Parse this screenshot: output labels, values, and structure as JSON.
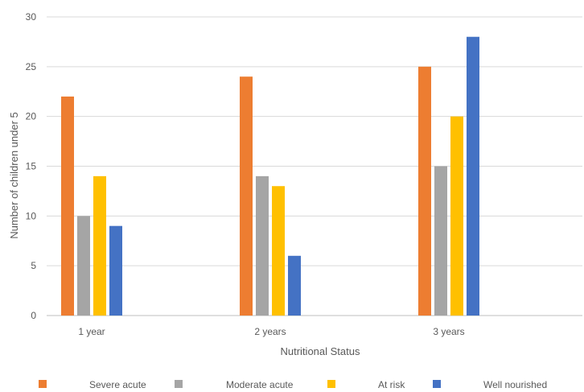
{
  "chart_data": {
    "type": "bar",
    "title": "",
    "xlabel": "Nutritional Status",
    "ylabel": "Number of children under 5",
    "categories": [
      "1 year",
      "2 years",
      "3 years"
    ],
    "series": [
      {
        "name": "Severe acute",
        "color": "#ED7D31",
        "values": [
          22,
          24,
          25
        ]
      },
      {
        "name": "Moderate acute",
        "color": "#A5A5A5",
        "values": [
          10,
          14,
          15
        ]
      },
      {
        "name": "At risk",
        "color": "#FFC000",
        "values": [
          14,
          13,
          20
        ]
      },
      {
        "name": "Well nourished",
        "color": "#4472C4",
        "values": [
          9,
          6,
          28
        ]
      }
    ],
    "ylim": [
      0,
      30
    ],
    "yticks": [
      0,
      5,
      10,
      15,
      20,
      25,
      30
    ],
    "grid": true,
    "legend_position": "bottom"
  }
}
